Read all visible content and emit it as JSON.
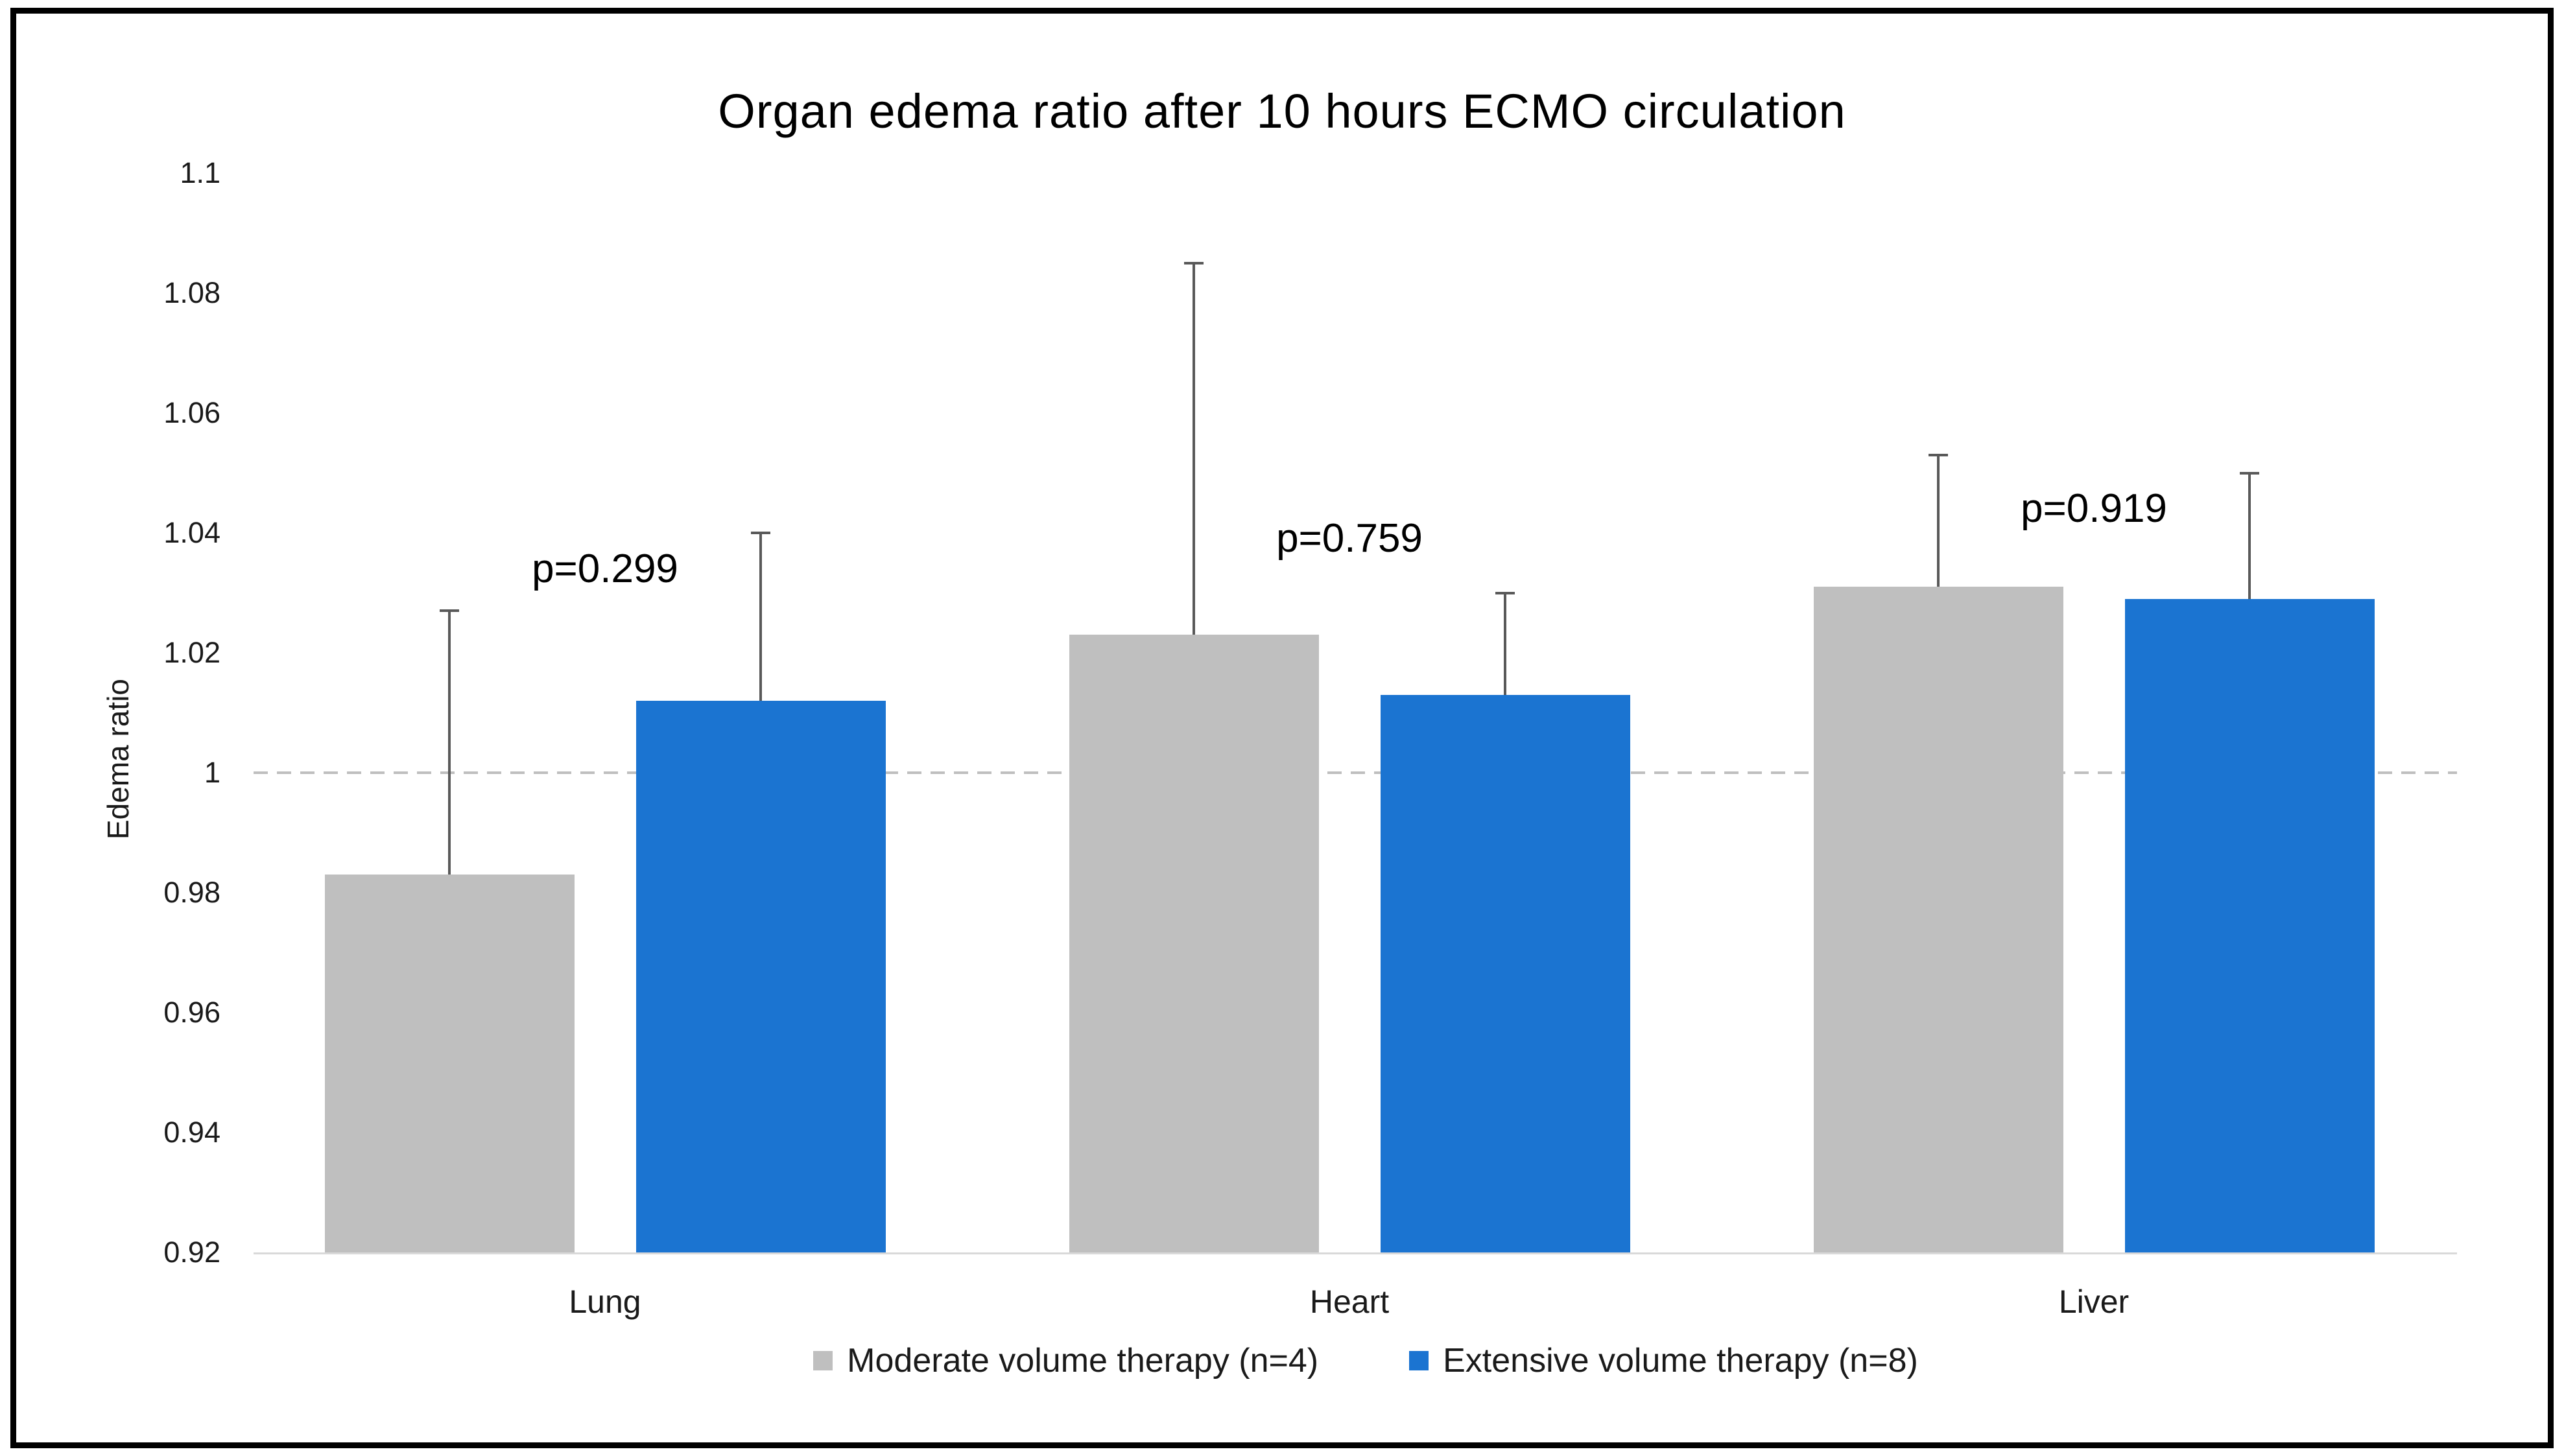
{
  "chart_data": {
    "type": "bar",
    "title": "Organ edema ratio after 10 hours ECMO circulation",
    "ylabel": "Edema ratio",
    "categories": [
      "Lung",
      "Heart",
      "Liver"
    ],
    "series": [
      {
        "name": "Moderate volume therapy (n=4)",
        "color": "#BFBFBF",
        "values": [
          0.983,
          1.023,
          1.031
        ],
        "error_plus": [
          0.044,
          0.062,
          0.022
        ]
      },
      {
        "name": "Extensive volume therapy (n=8)",
        "color": "#1B74D1",
        "values": [
          1.012,
          1.013,
          1.029
        ],
        "error_plus": [
          0.028,
          0.017,
          0.021
        ]
      }
    ],
    "p_annotations": [
      {
        "text": "p=0.299",
        "y": 1.034
      },
      {
        "text": "p=0.759",
        "y": 1.039
      },
      {
        "text": "p=0.919",
        "y": 1.044
      }
    ],
    "y_axis": {
      "min": 0.92,
      "max": 1.1,
      "step": 0.02,
      "tick_labels": [
        "1.1",
        "1.08",
        "1.06",
        "1.04",
        "1.02",
        "1",
        "0.98",
        "0.96",
        "0.94",
        "0.92"
      ]
    },
    "reference_line": {
      "value": 1.0,
      "style": "dashed",
      "color": "#BFBFBF"
    },
    "error_bar_color": "#595959",
    "axis_line_color": "#D9D9D9",
    "text_color": "#000000",
    "legend_position": "bottom",
    "grid": false
  }
}
